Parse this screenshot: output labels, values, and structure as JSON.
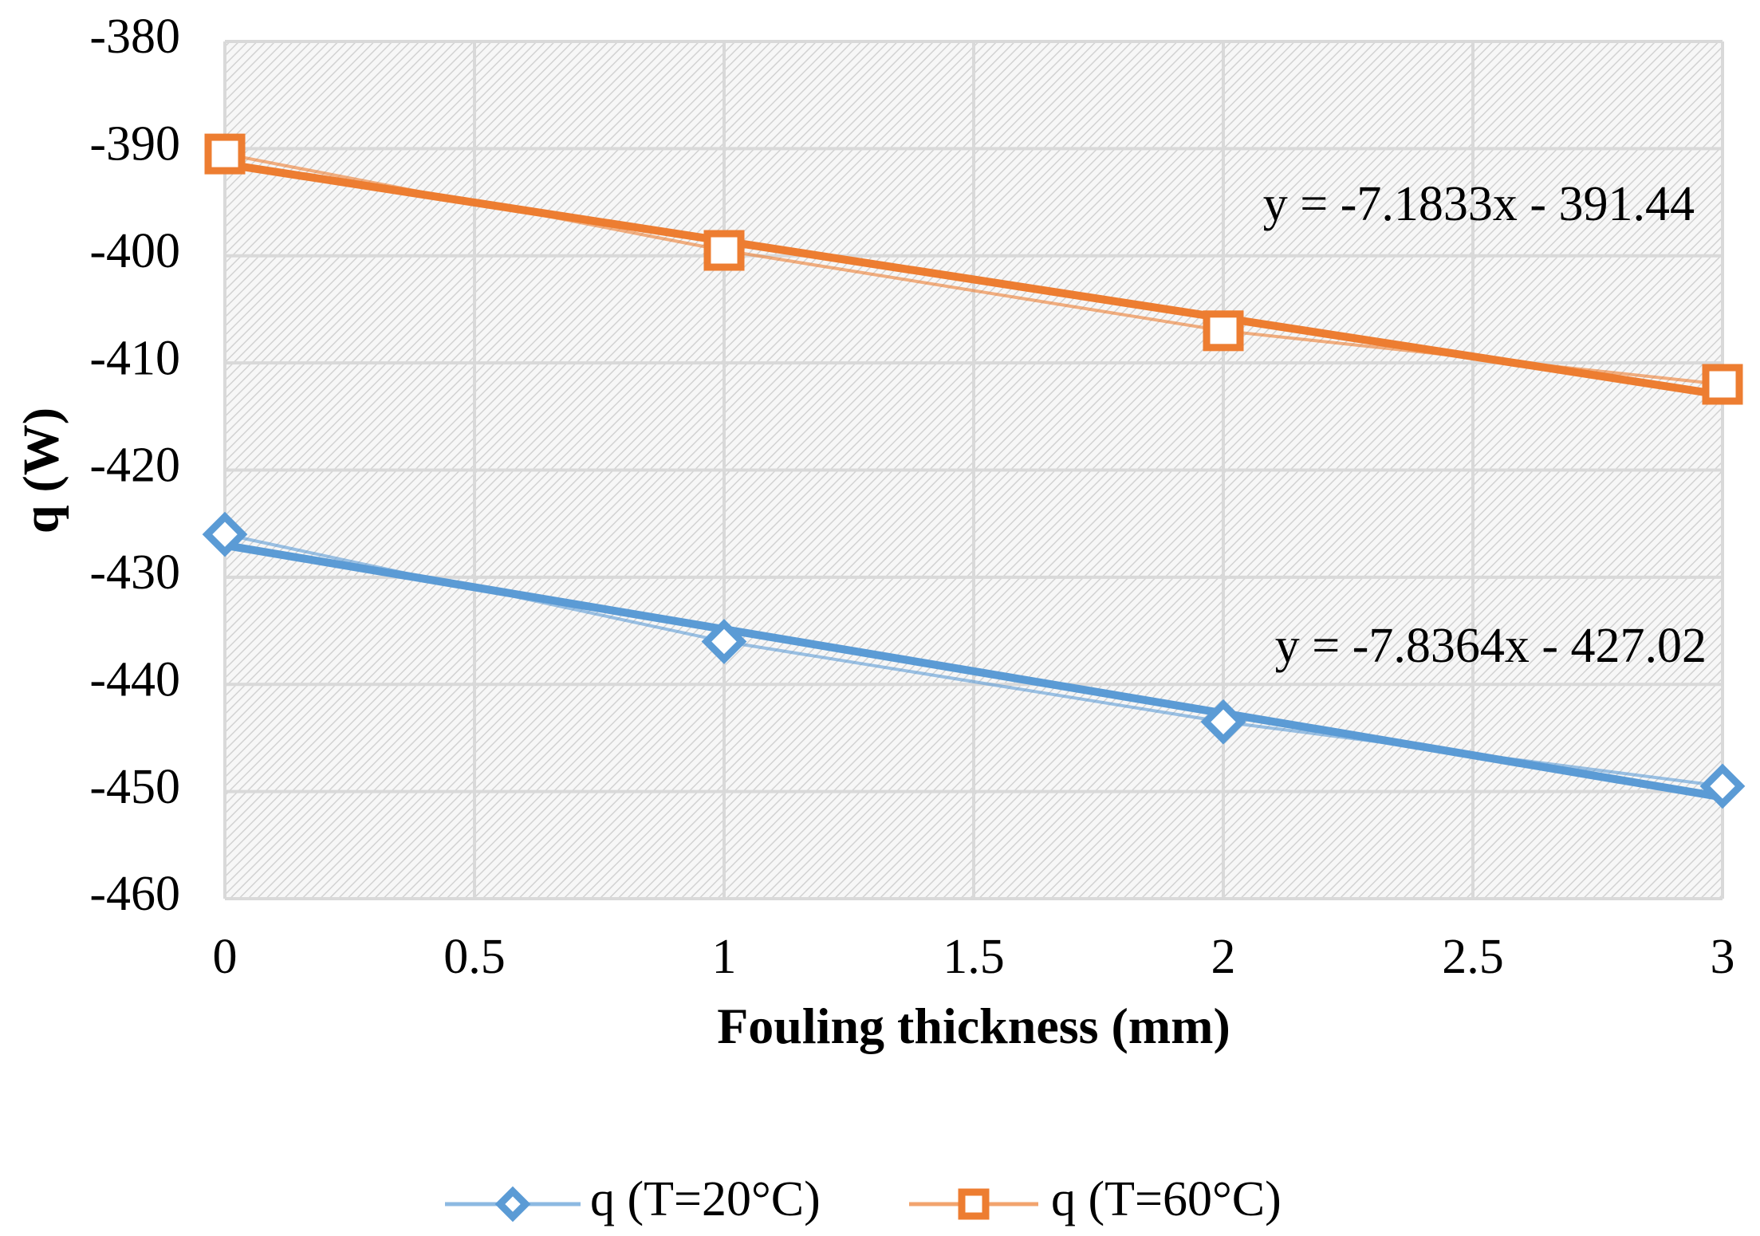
{
  "chart_data": {
    "type": "line",
    "title": "",
    "xlabel": "Fouling thickness (mm)",
    "ylabel": "q (W)",
    "xlim": [
      0,
      3
    ],
    "ylim": [
      -460,
      -380
    ],
    "x_ticks": [
      "0",
      "0.5",
      "1",
      "1.5",
      "2",
      "2.5",
      "3"
    ],
    "x_tick_values": [
      0,
      0.5,
      1,
      1.5,
      2,
      2.5,
      3
    ],
    "y_ticks": [
      "-380",
      "-390",
      "-400",
      "-410",
      "-420",
      "-430",
      "-440",
      "-450",
      "-460"
    ],
    "y_tick_values": [
      -380,
      -390,
      -400,
      -410,
      -420,
      -430,
      -440,
      -450,
      -460
    ],
    "grid": true,
    "legend_position": "bottom",
    "series": [
      {
        "name": "q (T=20°C)",
        "marker": "diamond",
        "color": "#5b9bd5",
        "x": [
          0,
          1,
          2,
          3
        ],
        "values": [
          -426,
          -436,
          -443.5,
          -449.5
        ],
        "trendline": {
          "slope": -7.8364,
          "intercept": -427.02,
          "equation": "y = -7.8364x - 427.02"
        }
      },
      {
        "name": "q (T=60°C)",
        "marker": "square",
        "color": "#ed7d31",
        "x": [
          0,
          1,
          2,
          3
        ],
        "values": [
          -390.5,
          -399.5,
          -407,
          -412
        ],
        "trendline": {
          "slope": -7.1833,
          "intercept": -391.44,
          "equation": "y = -7.1833x - 391.44"
        }
      }
    ]
  }
}
